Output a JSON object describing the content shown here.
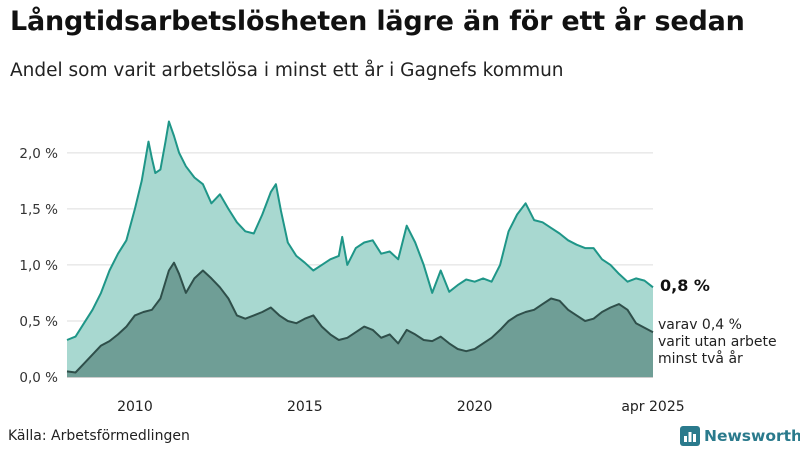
{
  "header": {
    "title": "Långtidsarbetslösheten lägre än för ett år sedan",
    "subtitle": "Andel som varit arbetslösa i minst ett år i Gagnefs kommun"
  },
  "footer": {
    "source": "Källa: Arbetsförmedlingen",
    "brand": "Newsworthy"
  },
  "annotations": {
    "end_label": "0,8 %",
    "note_lines": [
      "varav 0,4 %",
      "varit utan arbete",
      "minst två år"
    ]
  },
  "colors": {
    "total_fill": "#a8d8d0",
    "total_line": "#1f9688",
    "twoyear_fill": "#6f9e96",
    "twoyear_line": "#2f4f4a",
    "grid": "#dddddd"
  },
  "chart_data": {
    "type": "area",
    "title": "Långtidsarbetslösheten lägre än för ett år sedan",
    "subtitle": "Andel som varit arbetslösa i minst ett år i Gagnefs kommun",
    "xlabel": "",
    "ylabel": "",
    "ylim": [
      0,
      2.4
    ],
    "yticks": [
      0,
      0.5,
      1.0,
      1.5,
      2.0
    ],
    "ytick_labels": [
      "0,0 %",
      "0,5 %",
      "1,0 %",
      "1,5 %",
      "2,0 %"
    ],
    "xticks": [
      2010,
      2015,
      2020,
      2025.25
    ],
    "xtick_labels": [
      "2010",
      "2015",
      "2020",
      "apr 2025"
    ],
    "grid": true,
    "units": "percent",
    "series": [
      {
        "points": [
          [
            2008.0,
            0.33
          ],
          [
            2008.25,
            0.36
          ],
          [
            2008.5,
            0.48
          ],
          [
            2008.75,
            0.6
          ],
          [
            2009.0,
            0.75
          ],
          [
            2009.25,
            0.95
          ],
          [
            2009.5,
            1.1
          ],
          [
            2009.75,
            1.22
          ],
          [
            2010.0,
            1.5
          ],
          [
            2010.2,
            1.75
          ],
          [
            2010.4,
            2.1
          ],
          [
            2010.5,
            1.95
          ],
          [
            2010.6,
            1.82
          ],
          [
            2010.75,
            1.85
          ],
          [
            2010.9,
            2.1
          ],
          [
            2011.0,
            2.28
          ],
          [
            2011.15,
            2.15
          ],
          [
            2011.3,
            2.0
          ],
          [
            2011.5,
            1.88
          ],
          [
            2011.75,
            1.78
          ],
          [
            2012.0,
            1.72
          ],
          [
            2012.25,
            1.55
          ],
          [
            2012.5,
            1.63
          ],
          [
            2012.75,
            1.5
          ],
          [
            2013.0,
            1.38
          ],
          [
            2013.25,
            1.3
          ],
          [
            2013.5,
            1.28
          ],
          [
            2013.75,
            1.45
          ],
          [
            2014.0,
            1.65
          ],
          [
            2014.15,
            1.72
          ],
          [
            2014.3,
            1.48
          ],
          [
            2014.5,
            1.2
          ],
          [
            2014.75,
            1.08
          ],
          [
            2015.0,
            1.02
          ],
          [
            2015.25,
            0.95
          ],
          [
            2015.5,
            1.0
          ],
          [
            2015.75,
            1.05
          ],
          [
            2016.0,
            1.08
          ],
          [
            2016.1,
            1.25
          ],
          [
            2016.25,
            1.0
          ],
          [
            2016.5,
            1.15
          ],
          [
            2016.75,
            1.2
          ],
          [
            2017.0,
            1.22
          ],
          [
            2017.25,
            1.1
          ],
          [
            2017.5,
            1.12
          ],
          [
            2017.75,
            1.05
          ],
          [
            2018.0,
            1.35
          ],
          [
            2018.25,
            1.2
          ],
          [
            2018.5,
            1.0
          ],
          [
            2018.75,
            0.75
          ],
          [
            2019.0,
            0.95
          ],
          [
            2019.25,
            0.76
          ],
          [
            2019.5,
            0.82
          ],
          [
            2019.75,
            0.87
          ],
          [
            2020.0,
            0.85
          ],
          [
            2020.25,
            0.88
          ],
          [
            2020.5,
            0.85
          ],
          [
            2020.75,
            1.0
          ],
          [
            2021.0,
            1.3
          ],
          [
            2021.25,
            1.45
          ],
          [
            2021.5,
            1.55
          ],
          [
            2021.75,
            1.4
          ],
          [
            2022.0,
            1.38
          ],
          [
            2022.25,
            1.33
          ],
          [
            2022.5,
            1.28
          ],
          [
            2022.75,
            1.22
          ],
          [
            2023.0,
            1.18
          ],
          [
            2023.25,
            1.15
          ],
          [
            2023.5,
            1.15
          ],
          [
            2023.75,
            1.05
          ],
          [
            2024.0,
            1.0
          ],
          [
            2024.25,
            0.92
          ],
          [
            2024.5,
            0.85
          ],
          [
            2024.75,
            0.88
          ],
          [
            2025.0,
            0.86
          ],
          [
            2025.25,
            0.8
          ]
        ]
      },
      {
        "points": [
          [
            2008.0,
            0.05
          ],
          [
            2008.25,
            0.04
          ],
          [
            2008.5,
            0.12
          ],
          [
            2008.75,
            0.2
          ],
          [
            2009.0,
            0.28
          ],
          [
            2009.25,
            0.32
          ],
          [
            2009.5,
            0.38
          ],
          [
            2009.75,
            0.45
          ],
          [
            2010.0,
            0.55
          ],
          [
            2010.25,
            0.58
          ],
          [
            2010.5,
            0.6
          ],
          [
            2010.75,
            0.7
          ],
          [
            2011.0,
            0.95
          ],
          [
            2011.15,
            1.02
          ],
          [
            2011.3,
            0.92
          ],
          [
            2011.5,
            0.75
          ],
          [
            2011.75,
            0.88
          ],
          [
            2012.0,
            0.95
          ],
          [
            2012.25,
            0.88
          ],
          [
            2012.5,
            0.8
          ],
          [
            2012.75,
            0.7
          ],
          [
            2013.0,
            0.55
          ],
          [
            2013.25,
            0.52
          ],
          [
            2013.5,
            0.55
          ],
          [
            2013.75,
            0.58
          ],
          [
            2014.0,
            0.62
          ],
          [
            2014.25,
            0.55
          ],
          [
            2014.5,
            0.5
          ],
          [
            2014.75,
            0.48
          ],
          [
            2015.0,
            0.52
          ],
          [
            2015.25,
            0.55
          ],
          [
            2015.5,
            0.45
          ],
          [
            2015.75,
            0.38
          ],
          [
            2016.0,
            0.33
          ],
          [
            2016.25,
            0.35
          ],
          [
            2016.5,
            0.4
          ],
          [
            2016.75,
            0.45
          ],
          [
            2017.0,
            0.42
          ],
          [
            2017.25,
            0.35
          ],
          [
            2017.5,
            0.38
          ],
          [
            2017.75,
            0.3
          ],
          [
            2018.0,
            0.42
          ],
          [
            2018.25,
            0.38
          ],
          [
            2018.5,
            0.33
          ],
          [
            2018.75,
            0.32
          ],
          [
            2019.0,
            0.36
          ],
          [
            2019.25,
            0.3
          ],
          [
            2019.5,
            0.25
          ],
          [
            2019.75,
            0.23
          ],
          [
            2020.0,
            0.25
          ],
          [
            2020.25,
            0.3
          ],
          [
            2020.5,
            0.35
          ],
          [
            2020.75,
            0.42
          ],
          [
            2021.0,
            0.5
          ],
          [
            2021.25,
            0.55
          ],
          [
            2021.5,
            0.58
          ],
          [
            2021.75,
            0.6
          ],
          [
            2022.0,
            0.65
          ],
          [
            2022.25,
            0.7
          ],
          [
            2022.5,
            0.68
          ],
          [
            2022.75,
            0.6
          ],
          [
            2023.0,
            0.55
          ],
          [
            2023.25,
            0.5
          ],
          [
            2023.5,
            0.52
          ],
          [
            2023.75,
            0.58
          ],
          [
            2024.0,
            0.62
          ],
          [
            2024.25,
            0.65
          ],
          [
            2024.5,
            0.6
          ],
          [
            2024.75,
            0.48
          ],
          [
            2025.0,
            0.44
          ],
          [
            2025.25,
            0.4
          ]
        ]
      }
    ]
  }
}
